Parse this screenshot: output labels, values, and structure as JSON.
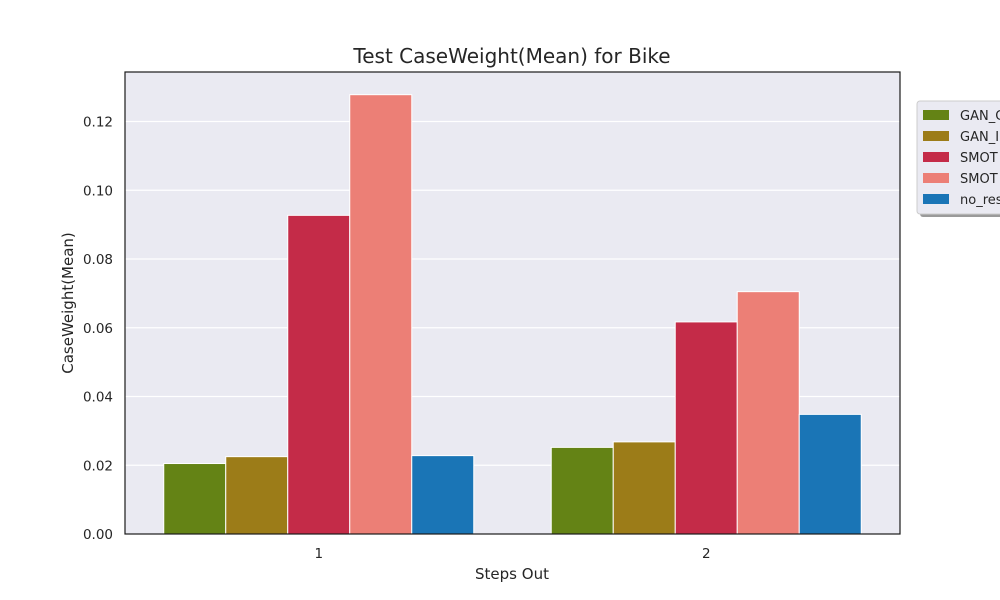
{
  "chart_data": {
    "type": "bar",
    "title": "Test CaseWeight(Mean) for Bike",
    "xlabel": "Steps Out",
    "ylabel": "CaseWeight(Mean)",
    "categories": [
      "1",
      "2"
    ],
    "ylim": [
      0,
      0.1344
    ],
    "yticks": [
      "0.00",
      "0.02",
      "0.04",
      "0.06",
      "0.08",
      "0.10",
      "0.12"
    ],
    "grid": true,
    "legend_position": "right",
    "series": [
      {
        "name": "GAN_C",
        "color": "#648315",
        "values": [
          0.0205,
          0.0252
        ]
      },
      {
        "name": "GAN_I",
        "color": "#9c7c18",
        "values": [
          0.0225,
          0.0268
        ]
      },
      {
        "name": "SMOT",
        "color": "#c42b48",
        "values": [
          0.0927,
          0.0617
        ]
      },
      {
        "name": "SMOT",
        "color": "#ec7f76",
        "values": [
          0.1278,
          0.0705
        ]
      },
      {
        "name": "no_res",
        "color": "#1a75b6",
        "values": [
          0.0228,
          0.0348
        ]
      }
    ]
  }
}
